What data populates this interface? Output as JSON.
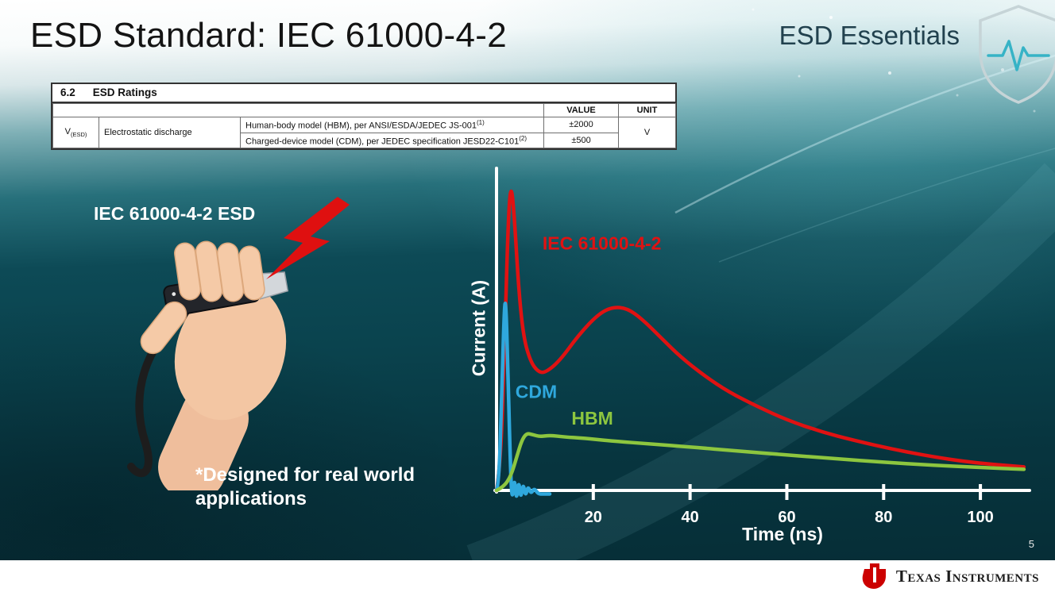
{
  "slide": {
    "title": "ESD Standard: IEC 61000-4-2",
    "brand_series": "ESD Essentials",
    "page_number": "5",
    "illustration_label": "IEC 61000-4-2 ESD",
    "footnote": "*Designed for real world applications"
  },
  "ratings_table": {
    "section_number": "6.2",
    "section_title": "ESD Ratings",
    "col_value": "VALUE",
    "col_unit": "UNIT",
    "param_symbol": "V",
    "param_subscript": "(ESD)",
    "param_name": "Electrostatic discharge",
    "rows": [
      {
        "description": "Human-body model (HBM), per ANSI/ESDA/JEDEC JS-001",
        "superscript": "(1)",
        "value": "±2000"
      },
      {
        "description": "Charged-device model (CDM), per JEDEC specification JESD22-C101",
        "superscript": "(2)",
        "value": "±500"
      }
    ],
    "unit": "V"
  },
  "chart_data": {
    "type": "line",
    "title": "",
    "xlabel": "Time (ns)",
    "ylabel": "Current (A)",
    "xlim": [
      0,
      110
    ],
    "ylim": [
      -0.06,
      1.1
    ],
    "x_ticks": [
      20,
      40,
      60,
      80,
      100
    ],
    "grid": false,
    "legend_position": "inline-labels",
    "series": [
      {
        "name": "IEC 61000-4-2",
        "color": "#e01212",
        "label_anchor": [
          9.5,
          0.82
        ],
        "points": [
          [
            0,
            0
          ],
          [
            0.8,
            0.08
          ],
          [
            1.6,
            0.45
          ],
          [
            2.4,
            0.92
          ],
          [
            3.0,
            1.05
          ],
          [
            3.7,
            0.93
          ],
          [
            4.6,
            0.68
          ],
          [
            5.6,
            0.52
          ],
          [
            7,
            0.44
          ],
          [
            8.5,
            0.405
          ],
          [
            10,
            0.4
          ],
          [
            13,
            0.44
          ],
          [
            17,
            0.53
          ],
          [
            21,
            0.6
          ],
          [
            24,
            0.625
          ],
          [
            27,
            0.62
          ],
          [
            30,
            0.585
          ],
          [
            34,
            0.52
          ],
          [
            38,
            0.455
          ],
          [
            43,
            0.39
          ],
          [
            48,
            0.335
          ],
          [
            54,
            0.285
          ],
          [
            60,
            0.24
          ],
          [
            67,
            0.2
          ],
          [
            74,
            0.17
          ],
          [
            82,
            0.14
          ],
          [
            90,
            0.115
          ],
          [
            97,
            0.098
          ],
          [
            103,
            0.088
          ],
          [
            109,
            0.08
          ]
        ]
      },
      {
        "name": "CDM",
        "color": "#2fa8dd",
        "label_anchor": [
          3.9,
          0.315
        ],
        "points": [
          [
            0,
            0
          ],
          [
            0.5,
            0.03
          ],
          [
            1.0,
            0.28
          ],
          [
            1.6,
            0.62
          ],
          [
            1.9,
            0.65
          ],
          [
            2.3,
            0.45
          ],
          [
            2.8,
            0.12
          ],
          [
            3.2,
            -0.045
          ],
          [
            3.7,
            0.05
          ],
          [
            4.1,
            -0.04
          ],
          [
            4.6,
            0.038
          ],
          [
            5.0,
            -0.032
          ],
          [
            5.5,
            0.027
          ],
          [
            6.0,
            -0.022
          ],
          [
            6.5,
            0.016
          ],
          [
            7.1,
            -0.012
          ],
          [
            7.8,
            0.008
          ],
          [
            8.6,
            -0.012
          ],
          [
            9.6,
            -0.012
          ],
          [
            11,
            -0.012
          ]
        ]
      },
      {
        "name": "HBM",
        "color": "#8dc63f",
        "label_anchor": [
          15.5,
          0.225
        ],
        "points": [
          [
            0,
            0
          ],
          [
            1.5,
            0.012
          ],
          [
            3,
            0.05
          ],
          [
            4.2,
            0.115
          ],
          [
            5.2,
            0.17
          ],
          [
            6.2,
            0.195
          ],
          [
            7.5,
            0.19
          ],
          [
            9,
            0.183
          ],
          [
            11,
            0.188
          ],
          [
            14,
            0.182
          ],
          [
            18,
            0.178
          ],
          [
            24,
            0.168
          ],
          [
            32,
            0.158
          ],
          [
            40,
            0.148
          ],
          [
            50,
            0.134
          ],
          [
            60,
            0.121
          ],
          [
            70,
            0.108
          ],
          [
            80,
            0.096
          ],
          [
            90,
            0.086
          ],
          [
            100,
            0.078
          ],
          [
            109,
            0.072
          ]
        ]
      }
    ]
  },
  "footer": {
    "brand": "Texas Instruments"
  }
}
